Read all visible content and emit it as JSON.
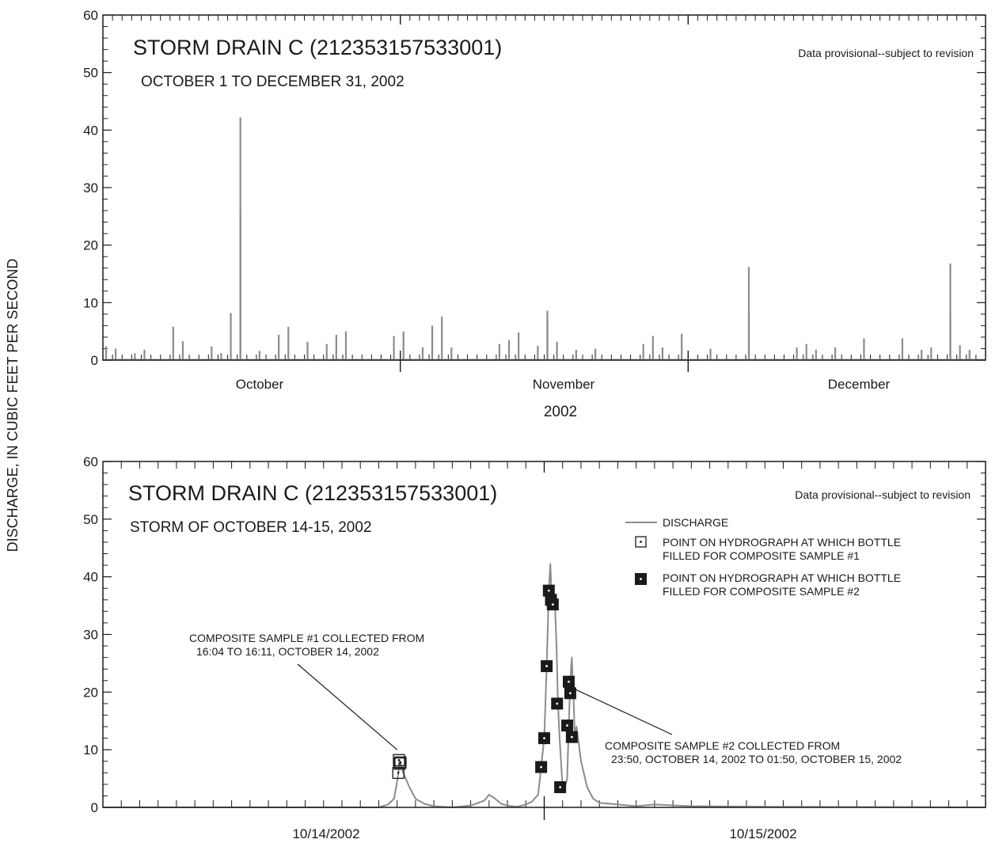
{
  "figure": {
    "ylabel": "DISCHARGE, IN CUBIC FEET PER SECOND"
  },
  "chart_data": [
    {
      "type": "line",
      "title": "STORM DRAIN C (212353157533001)",
      "subtitle": "OCTOBER 1 TO DECEMBER 31, 2002",
      "note": "Data provisional--subject to revision",
      "xlabel": "2002",
      "ylabel": "DISCHARGE, IN CUBIC FEET PER SECOND",
      "ylim": [
        0,
        60
      ],
      "yticks": [
        0,
        10,
        20,
        30,
        40,
        50,
        60
      ],
      "xlim": [
        "2002-10-01",
        "2003-01-01"
      ],
      "x_labels": [
        "October",
        "November",
        "December"
      ],
      "grid": false,
      "series": [
        {
          "color": "#8c8c8c",
          "events": [
            [
              "2002-10-01",
              2.4
            ],
            [
              "2002-10-02",
              2.0
            ],
            [
              "2002-10-04",
              1.2
            ],
            [
              "2002-10-05",
              1.8
            ],
            [
              "2002-10-08",
              5.8
            ],
            [
              "2002-10-09",
              3.3
            ],
            [
              "2002-10-12",
              2.4
            ],
            [
              "2002-10-13",
              1.2
            ],
            [
              "2002-10-14",
              8.2
            ],
            [
              "2002-10-15",
              42.2
            ],
            [
              "2002-10-15",
              26.0
            ],
            [
              "2002-10-17",
              1.6
            ],
            [
              "2002-10-19",
              4.4
            ],
            [
              "2002-10-20",
              5.8
            ],
            [
              "2002-10-22",
              3.2
            ],
            [
              "2002-10-24",
              2.8
            ],
            [
              "2002-10-25",
              4.4
            ],
            [
              "2002-10-26",
              5.0
            ],
            [
              "2002-10-31",
              4.2
            ],
            [
              "2002-11-01",
              5.0
            ],
            [
              "2002-11-03",
              2.2
            ],
            [
              "2002-11-04",
              6.0
            ],
            [
              "2002-11-05",
              7.6
            ],
            [
              "2002-11-06",
              2.2
            ],
            [
              "2002-11-11",
              2.8
            ],
            [
              "2002-11-12",
              3.5
            ],
            [
              "2002-11-13",
              4.8
            ],
            [
              "2002-11-15",
              2.5
            ],
            [
              "2002-11-16",
              6.8
            ],
            [
              "2002-11-16",
              8.6
            ],
            [
              "2002-11-17",
              3.2
            ],
            [
              "2002-11-19",
              1.8
            ],
            [
              "2002-11-21",
              2.0
            ],
            [
              "2002-11-26",
              2.8
            ],
            [
              "2002-11-27",
              4.2
            ],
            [
              "2002-11-28",
              2.2
            ],
            [
              "2002-11-30",
              4.6
            ],
            [
              "2002-12-03",
              2.0
            ],
            [
              "2002-12-07",
              16.2
            ],
            [
              "2002-12-07",
              8.5
            ],
            [
              "2002-12-12",
              2.2
            ],
            [
              "2002-12-13",
              2.8
            ],
            [
              "2002-12-14",
              1.8
            ],
            [
              "2002-12-16",
              2.2
            ],
            [
              "2002-12-19",
              3.8
            ],
            [
              "2002-12-23",
              3.8
            ],
            [
              "2002-12-25",
              1.8
            ],
            [
              "2002-12-26",
              2.2
            ],
            [
              "2002-12-28",
              7.6
            ],
            [
              "2002-12-28",
              16.8
            ],
            [
              "2002-12-29",
              2.6
            ],
            [
              "2002-12-30",
              1.8
            ]
          ]
        }
      ]
    },
    {
      "type": "line",
      "title": "STORM DRAIN C (212353157533001)",
      "subtitle": "STORM OF OCTOBER 14-15, 2002",
      "note": "Data provisional--subject to revision",
      "xlabel": "",
      "ylabel": "DISCHARGE, IN CUBIC FEET PER SECOND",
      "ylim": [
        0,
        60
      ],
      "yticks": [
        0,
        10,
        20,
        30,
        40,
        50,
        60
      ],
      "xlim": [
        "2002-10-14 00:00",
        "2002-10-16 00:00"
      ],
      "x_labels": [
        "10/14/2002",
        "10/15/2002"
      ],
      "grid": false,
      "legend": {
        "position": "top-right",
        "items": [
          {
            "marker": "line",
            "label": "DISCHARGE"
          },
          {
            "marker": "open-square",
            "label1": "POINT ON HYDROGRAPH AT WHICH BOTTLE",
            "label2": "FILLED FOR COMPOSITE SAMPLE #1"
          },
          {
            "marker": "filled-square",
            "label1": "POINT ON HYDROGRAPH AT WHICH BOTTLE",
            "label2": "FILLED FOR COMPOSITE SAMPLE #2"
          }
        ]
      },
      "series": [
        {
          "name": "DISCHARGE",
          "color": "#8c8c8c",
          "x": [
            "2002-10-14 00:00",
            "2002-10-14 15:00",
            "2002-10-14 15:30",
            "2002-10-14 15:50",
            "2002-10-14 16:00",
            "2002-10-14 16:04",
            "2002-10-14 16:08",
            "2002-10-14 16:11",
            "2002-10-14 16:20",
            "2002-10-14 16:40",
            "2002-10-14 17:00",
            "2002-10-14 17:30",
            "2002-10-14 18:00",
            "2002-10-14 19:00",
            "2002-10-14 20:00",
            "2002-10-14 20:45",
            "2002-10-14 21:00",
            "2002-10-14 21:20",
            "2002-10-14 21:40",
            "2002-10-14 22:00",
            "2002-10-14 22:30",
            "2002-10-14 23:00",
            "2002-10-14 23:20",
            "2002-10-14 23:40",
            "2002-10-14 23:50",
            "2002-10-15 00:00",
            "2002-10-15 00:08",
            "2002-10-15 00:15",
            "2002-10-15 00:20",
            "2002-10-15 00:25",
            "2002-10-15 00:30",
            "2002-10-15 00:35",
            "2002-10-15 00:40",
            "2002-10-15 00:45",
            "2002-10-15 00:50",
            "2002-10-15 01:00",
            "2002-10-15 01:05",
            "2002-10-15 01:15",
            "2002-10-15 01:20",
            "2002-10-15 01:25",
            "2002-10-15 01:30",
            "2002-10-15 01:35",
            "2002-10-15 01:40",
            "2002-10-15 01:45",
            "2002-10-15 01:50",
            "2002-10-15 02:00",
            "2002-10-15 02:20",
            "2002-10-15 02:40",
            "2002-10-15 03:00",
            "2002-10-15 05:00",
            "2002-10-15 06:00",
            "2002-10-15 08:00",
            "2002-10-15 12:00",
            "2002-10-16 00:00"
          ],
          "y": [
            0,
            0,
            0.5,
            1.5,
            4.5,
            6.0,
            8.2,
            7.6,
            6.0,
            3.5,
            1.5,
            0.6,
            0.2,
            0,
            0.3,
            1.2,
            2.2,
            1.5,
            0.6,
            0.3,
            0.1,
            0.5,
            1.0,
            2.2,
            7.0,
            12.0,
            24.5,
            37.6,
            42.2,
            35.8,
            38.0,
            35.2,
            28.0,
            18.0,
            12.0,
            3.5,
            3.0,
            5.0,
            14.2,
            21.8,
            26.0,
            19.8,
            12.0,
            14.0,
            12.2,
            8.0,
            3.5,
            1.5,
            0.8,
            0.2,
            0.5,
            0.2,
            0.1,
            0
          ]
        },
        {
          "name": "COMPOSITE SAMPLE #1",
          "marker": "open-square",
          "x": [
            "2002-10-14 16:04",
            "2002-10-14 16:06",
            "2002-10-14 16:08",
            "2002-10-14 16:11"
          ],
          "y": [
            6.0,
            8.2,
            7.6,
            7.8
          ]
        },
        {
          "name": "COMPOSITE SAMPLE #2",
          "marker": "filled-square",
          "x": [
            "2002-10-14 23:50",
            "2002-10-15 00:00",
            "2002-10-15 00:08",
            "2002-10-15 00:15",
            "2002-10-15 00:22",
            "2002-10-15 00:28",
            "2002-10-15 00:42",
            "2002-10-15 00:52",
            "2002-10-15 01:15",
            "2002-10-15 01:20",
            "2002-10-15 01:25",
            "2002-10-15 01:30"
          ],
          "y": [
            7.0,
            12.0,
            24.5,
            37.6,
            36.0,
            35.2,
            18.0,
            3.5,
            14.2,
            21.8,
            19.8,
            12.2
          ]
        }
      ],
      "annotations": [
        {
          "line1": "COMPOSITE SAMPLE #1 COLLECTED FROM",
          "line2": "16:04 TO 16:11,  OCTOBER 14, 2002",
          "points_to": {
            "x": "2002-10-14 16:00",
            "y": 10
          }
        },
        {
          "line1": "COMPOSITE SAMPLE #2 COLLECTED FROM",
          "line2": "23:50,  OCTOBER 14, 2002 TO 01:50,  OCTOBER 15, 2002",
          "points_to": {
            "x": "2002-10-15 01:40",
            "y": 20.5
          }
        }
      ]
    }
  ]
}
